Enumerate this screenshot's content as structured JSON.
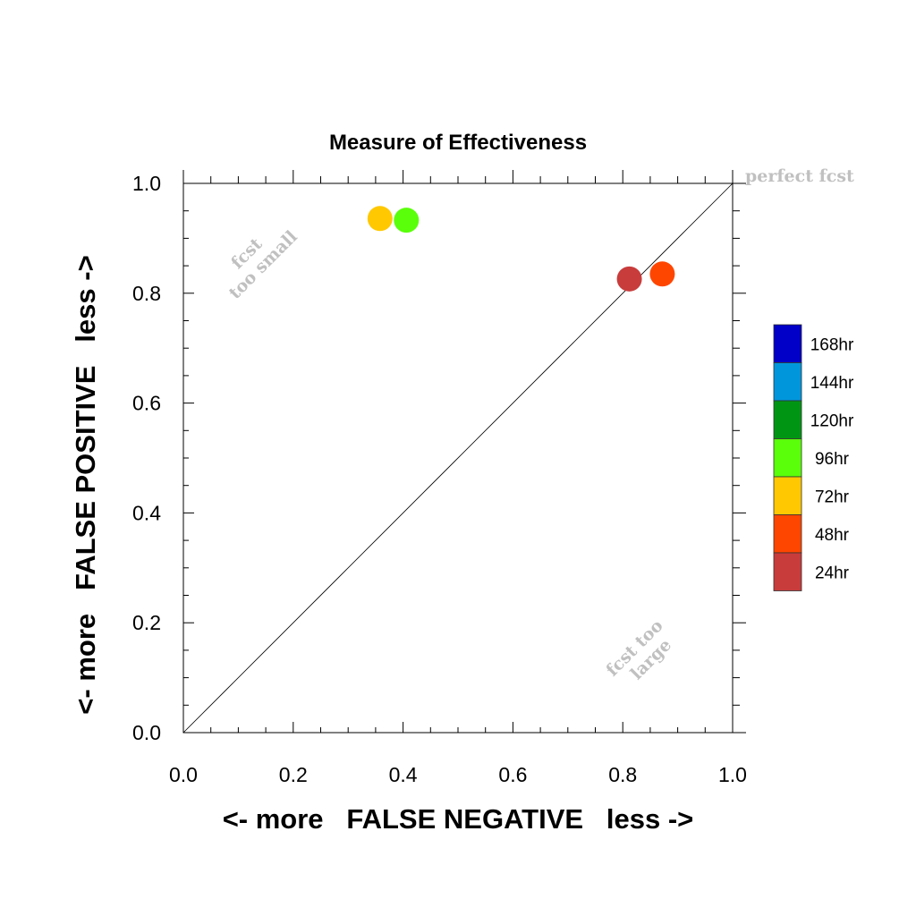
{
  "chart_data": {
    "type": "scatter",
    "title": "Measure of Effectiveness",
    "xlabel": "<- more   FALSE NEGATIVE   less ->",
    "ylabel": "<- more   FALSE POSITIVE   less ->",
    "xlim": [
      0,
      1
    ],
    "ylim": [
      0,
      1
    ],
    "x_ticks": [
      "0.0",
      "0.2",
      "0.4",
      "0.6",
      "0.8",
      "1.0"
    ],
    "y_ticks": [
      "0.0",
      "0.2",
      "0.4",
      "0.6",
      "0.8",
      "1.0"
    ],
    "grid": false,
    "diagonal_reference": true,
    "annotations": {
      "perfect": "perfect fcst",
      "too_small": [
        "fcst",
        "too small"
      ],
      "too_large": [
        "fcst too",
        "large"
      ]
    },
    "legend": {
      "placement": "right",
      "entries": [
        {
          "label": "168hr",
          "color": "#0000c8"
        },
        {
          "label": "144hr",
          "color": "#0096dc"
        },
        {
          "label": "120hr",
          "color": "#009614"
        },
        {
          "label": "96hr",
          "color": "#5aff0a"
        },
        {
          "label": "72hr",
          "color": "#ffc800"
        },
        {
          "label": "48hr",
          "color": "#ff4600"
        },
        {
          "label": "24hr",
          "color": "#c83c3c"
        }
      ]
    },
    "series": [
      {
        "name": "24hr",
        "color": "#c83c3c",
        "x": 0.812,
        "y": 0.826
      },
      {
        "name": "48hr",
        "color": "#ff4600",
        "x": 0.872,
        "y": 0.835
      },
      {
        "name": "72hr",
        "color": "#ffc800",
        "x": 0.358,
        "y": 0.936
      },
      {
        "name": "96hr",
        "color": "#5aff0a",
        "x": 0.406,
        "y": 0.933
      }
    ]
  }
}
